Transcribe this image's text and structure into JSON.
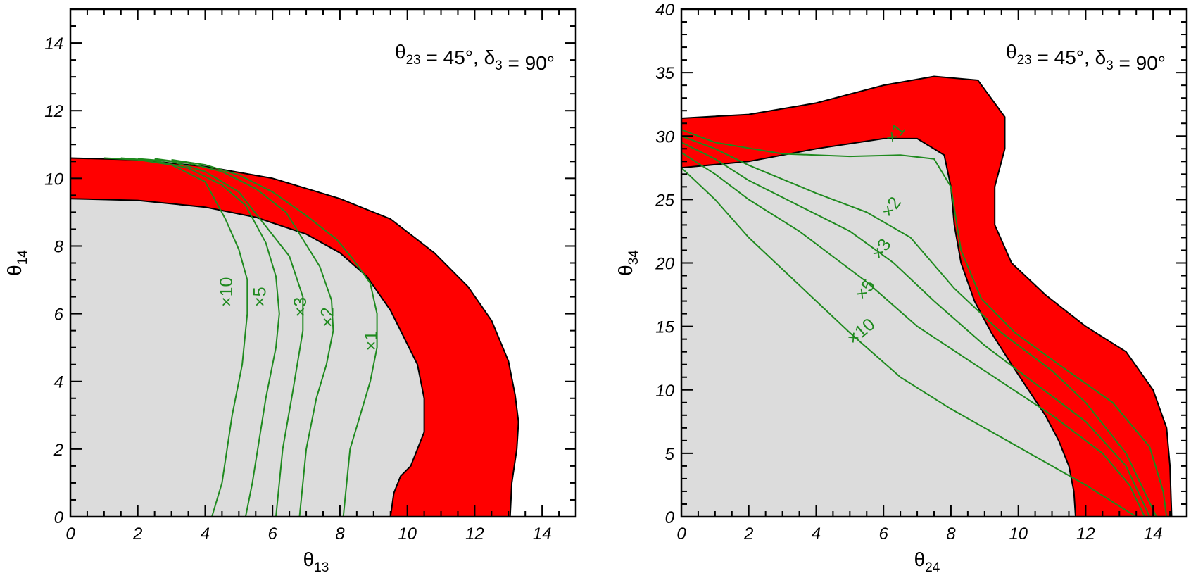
{
  "chart_data": [
    {
      "type": "area",
      "xlabel": "θ13",
      "ylabel": "θ14",
      "xlim": [
        0,
        15
      ],
      "ylim": [
        0,
        15
      ],
      "xticks": [
        0,
        2,
        4,
        6,
        8,
        10,
        12,
        14
      ],
      "yticks": [
        0,
        2,
        4,
        6,
        8,
        10,
        12,
        14
      ],
      "annotation": "θ23 = 45°,  δ3 = 90°",
      "colors": {
        "region_outer": "#ff0000",
        "region_inner": "#dcdcdc",
        "curves": "#1f8a1f"
      },
      "regions": {
        "inner_boundary": {
          "x": [
            0,
            2,
            4,
            5.5,
            7,
            8,
            8.8,
            9.5,
            10,
            10.3,
            10.5,
            10.5,
            10.3,
            10.1,
            9.8,
            9.6,
            9.5
          ],
          "y": [
            9.4,
            9.35,
            9.15,
            8.85,
            8.35,
            7.8,
            7.1,
            6.1,
            5.1,
            4.5,
            3.5,
            2.5,
            2,
            1.5,
            1.2,
            0.7,
            0
          ]
        },
        "outer_boundary": {
          "x": [
            0,
            2,
            4,
            6,
            8,
            9.5,
            10.8,
            11.8,
            12.5,
            13,
            13.2,
            13.3,
            13.25,
            13.1,
            13.05
          ],
          "y": [
            10.6,
            10.55,
            10.35,
            10,
            9.4,
            8.8,
            7.8,
            6.8,
            5.8,
            4.6,
            3.6,
            2.8,
            2,
            1,
            0
          ]
        }
      },
      "curves": [
        {
          "label": "×1",
          "x": [
            3,
            4,
            5,
            6,
            7,
            7.9,
            8.4,
            8.9,
            9.1,
            9.1,
            8.9,
            8.6,
            8.3,
            8.1
          ],
          "y": [
            10.55,
            10.4,
            10.1,
            9.6,
            8.9,
            8.2,
            7.6,
            6.9,
            6,
            5,
            4,
            3,
            2,
            0
          ]
        },
        {
          "label": "×2",
          "x": [
            2.5,
            3.5,
            4.5,
            5.5,
            6.4,
            7.4,
            7.75,
            7.8,
            7.6,
            7.3,
            7.0,
            6.8
          ],
          "y": [
            10.58,
            10.45,
            10.2,
            9.7,
            9.0,
            7.4,
            6.4,
            5.5,
            4.5,
            3.5,
            2,
            0
          ]
        },
        {
          "label": "×3",
          "x": [
            2,
            3,
            4,
            5,
            6.5,
            6.9,
            6.9,
            6.6,
            6.3,
            6.1
          ],
          "y": [
            10.58,
            10.5,
            10.2,
            9.6,
            7.7,
            6.5,
            5.5,
            3.7,
            2,
            0
          ]
        },
        {
          "label": "×5",
          "x": [
            1.5,
            2.5,
            3.5,
            4.5,
            5.2,
            5.8,
            6.1,
            6.2,
            6.1,
            5.8,
            5.4,
            5.2
          ],
          "y": [
            10.6,
            10.52,
            10.3,
            9.8,
            9.2,
            8.1,
            7.1,
            6,
            5,
            3.5,
            1,
            0
          ]
        },
        {
          "label": "×10",
          "x": [
            1,
            2,
            3,
            4,
            4.6,
            5,
            5.25,
            5.25,
            5.1,
            4.8,
            4.5,
            4.2
          ],
          "y": [
            10.6,
            10.55,
            10.4,
            9.9,
            8.8,
            7.9,
            7,
            6,
            4.5,
            3,
            1,
            0
          ]
        }
      ]
    },
    {
      "type": "area",
      "xlabel": "θ24",
      "ylabel": "θ34",
      "xlim": [
        0,
        15
      ],
      "ylim": [
        0,
        40
      ],
      "xticks": [
        0,
        2,
        4,
        6,
        8,
        10,
        12,
        14
      ],
      "yticks": [
        0,
        5,
        10,
        15,
        20,
        25,
        30,
        35,
        40
      ],
      "annotation": "θ23 = 45°,  δ3 = 90°",
      "colors": {
        "region_outer": "#ff0000",
        "region_inner": "#dcdcdc",
        "curves": "#1f8a1f"
      },
      "regions": {
        "inner_boundary": {
          "x": [
            0,
            2,
            4,
            6,
            7,
            7.8,
            8,
            8.1,
            8.3,
            8.7,
            9.2,
            9.8,
            10.3,
            10.8,
            11.2,
            11.5,
            11.65,
            11.7
          ],
          "y": [
            27.5,
            28,
            29,
            29.8,
            29.8,
            28.5,
            26,
            23,
            20,
            17,
            14.5,
            12,
            10,
            8,
            6,
            4,
            2,
            0
          ]
        },
        "outer_boundary": {
          "x": [
            0,
            2,
            4,
            6,
            7.5,
            8.8,
            9.6,
            9.6,
            9.3,
            9.3,
            9.8,
            10.8,
            12,
            13.2,
            14,
            14.4,
            14.5,
            14.55
          ],
          "y": [
            31.4,
            31.7,
            32.6,
            34,
            34.7,
            34.4,
            31.5,
            29,
            26,
            23,
            20,
            17.5,
            15,
            13,
            10,
            7,
            4,
            0
          ]
        }
      },
      "curves": [
        {
          "label": "×1",
          "x": [
            0,
            1,
            3,
            5,
            6.5,
            7.5,
            8,
            8.3,
            8.9,
            9.9,
            11.2,
            12.8,
            13.9,
            14.3,
            14.4
          ],
          "y": [
            30.5,
            29.5,
            28.6,
            28.4,
            28.5,
            28.2,
            26,
            21,
            17.2,
            14.5,
            12,
            9,
            5.5,
            2,
            0
          ]
        },
        {
          "label": "×2",
          "x": [
            0,
            1,
            2,
            4,
            5.5,
            6.8,
            8.1,
            9.5,
            11,
            12,
            13.2,
            14.1
          ],
          "y": [
            30,
            29,
            27.7,
            25.5,
            24,
            22,
            18,
            14.5,
            11.5,
            9,
            5,
            0
          ]
        },
        {
          "label": "×3",
          "x": [
            0,
            1,
            2,
            3.5,
            5,
            6.3,
            7.5,
            9,
            10.5,
            12,
            13.2,
            13.9
          ],
          "y": [
            29.5,
            28.2,
            26.5,
            24.5,
            22.5,
            20,
            17,
            13.5,
            10.5,
            7.5,
            4,
            0
          ]
        },
        {
          "label": "×5",
          "x": [
            0,
            1,
            2,
            3.5,
            4.5,
            5.5,
            7,
            9,
            11,
            12.5,
            13.3,
            13.75
          ],
          "y": [
            28.7,
            27,
            25,
            22.5,
            20.5,
            18.5,
            15,
            11.5,
            8,
            5,
            2.5,
            0
          ]
        },
        {
          "label": "×10",
          "x": [
            0,
            1,
            2,
            3,
            4,
            5,
            6.5,
            8,
            10,
            12,
            13.5
          ],
          "y": [
            27.5,
            25,
            22,
            19.5,
            17,
            14.5,
            11,
            8.5,
            5.5,
            2.5,
            0
          ]
        }
      ]
    }
  ]
}
